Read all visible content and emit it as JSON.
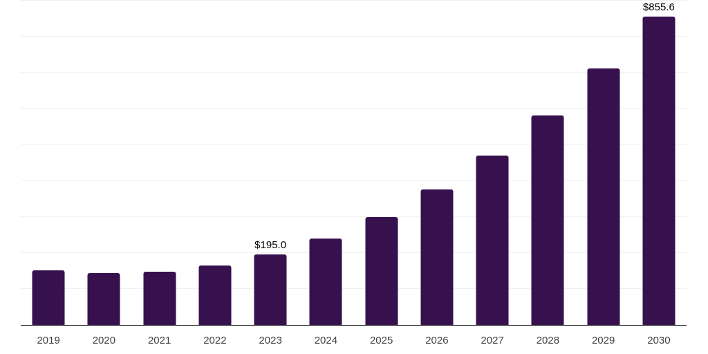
{
  "chart_data": {
    "type": "bar",
    "title": "",
    "xlabel": "",
    "ylabel": "",
    "categories": [
      "2019",
      "2020",
      "2021",
      "2022",
      "2023",
      "2024",
      "2025",
      "2026",
      "2027",
      "2028",
      "2029",
      "2030"
    ],
    "values": [
      152,
      144,
      147.5,
      165,
      195.0,
      240,
      299,
      376,
      470,
      581,
      712,
      855.6
    ],
    "data_labels": [
      "",
      "",
      "",
      "",
      "$195.0",
      "",
      "",
      "",
      "",
      "",
      "",
      "$855.6"
    ],
    "value_prefix": "$",
    "ylim": [
      0,
      900
    ],
    "gridline_step": 100,
    "grid": "horizontal",
    "legend_position": "none",
    "colors": {
      "bar": "#36114D",
      "gridline": "#EFEFEF",
      "axis_line": "#262626",
      "data_label_text": "#000000",
      "tick_label_text": "#404040",
      "background": "#FFFFFF"
    }
  }
}
